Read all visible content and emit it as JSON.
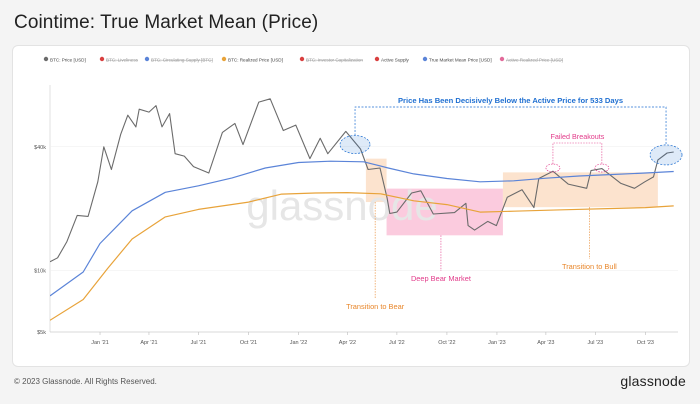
{
  "title": "Cointime: True Market Mean (Price)",
  "footer": {
    "copyright": "© 2023 Glassnode. All Rights Reserved.",
    "logo": "glassnode"
  },
  "watermark": "glassnode",
  "colors": {
    "price": "#6b6b6b",
    "true_market_mean": "#5b84d8",
    "realized": "#e8a33a",
    "annot_blue": "#1f6fd1",
    "annot_pink": "#e23b8a",
    "annot_orange": "#e8862a",
    "pink_fill": "#f9b9d3",
    "orange_fill": "#fbdcc2"
  },
  "chart_data": {
    "type": "line",
    "x_labels": [
      "Jan '21",
      "Apr '21",
      "Jul '21",
      "Oct '21",
      "Jan '22",
      "Apr '22",
      "Jul '22",
      "Oct '22",
      "Jan '23",
      "Apr '23",
      "Jul '23",
      "Oct '23"
    ],
    "y_scale": "log",
    "y_ticks": [
      {
        "value": 5000,
        "label": "$5k"
      },
      {
        "value": 10000,
        "label": "$10k"
      },
      {
        "value": 40000,
        "label": "$40k"
      }
    ],
    "ylim": [
      5000,
      80000
    ],
    "legend": [
      {
        "name": "BTC: Price [USD]",
        "color": "#6b6b6b",
        "hidden": false
      },
      {
        "name": "BTC: Liveliness",
        "color": "#d94040",
        "hidden": true
      },
      {
        "name": "BTC: Circulating Supply [BTC]",
        "color": "#5b84d8",
        "hidden": true
      },
      {
        "name": "BTC: Realized Price [USD]",
        "color": "#e8a33a",
        "hidden": false
      },
      {
        "name": "BTC: Investor Capitalization",
        "color": "#d94040",
        "hidden": true
      },
      {
        "name": "Active Supply",
        "color": "#d94040",
        "hidden": false
      },
      {
        "name": "True Market Mean Price [USD]",
        "color": "#5b84d8",
        "hidden": false
      },
      {
        "name": "Active Realized Price [USD]",
        "color": "#e26a9a",
        "hidden": true
      }
    ],
    "series": [
      {
        "name": "BTC: Price [USD]",
        "points": [
          [
            "2020-10-01",
            11000
          ],
          [
            "2020-10-15",
            11500
          ],
          [
            "2020-11-01",
            13800
          ],
          [
            "2020-11-20",
            18500
          ],
          [
            "2020-12-10",
            18300
          ],
          [
            "2020-12-28",
            27000
          ],
          [
            "2021-01-08",
            40000
          ],
          [
            "2021-01-22",
            31000
          ],
          [
            "2021-02-08",
            46000
          ],
          [
            "2021-02-21",
            57000
          ],
          [
            "2021-03-08",
            50000
          ],
          [
            "2021-03-14",
            61000
          ],
          [
            "2021-04-01",
            59000
          ],
          [
            "2021-04-14",
            63500
          ],
          [
            "2021-04-25",
            50000
          ],
          [
            "2021-05-09",
            58000
          ],
          [
            "2021-05-19",
            37000
          ],
          [
            "2021-06-05",
            36000
          ],
          [
            "2021-06-22",
            32000
          ],
          [
            "2021-07-20",
            29800
          ],
          [
            "2021-08-14",
            47000
          ],
          [
            "2021-09-06",
            52000
          ],
          [
            "2021-09-21",
            41000
          ],
          [
            "2021-10-20",
            66000
          ],
          [
            "2021-11-10",
            68500
          ],
          [
            "2021-12-04",
            48000
          ],
          [
            "2021-12-27",
            51000
          ],
          [
            "2022-01-22",
            35000
          ],
          [
            "2022-02-10",
            44000
          ],
          [
            "2022-02-24",
            37000
          ],
          [
            "2022-03-29",
            47500
          ],
          [
            "2022-04-25",
            39000
          ],
          [
            "2022-05-09",
            31000
          ],
          [
            "2022-05-31",
            31500
          ],
          [
            "2022-06-13",
            22500
          ],
          [
            "2022-06-18",
            18900
          ],
          [
            "2022-07-01",
            19200
          ],
          [
            "2022-07-28",
            23800
          ],
          [
            "2022-08-14",
            24400
          ],
          [
            "2022-09-06",
            18800
          ],
          [
            "2022-10-15",
            19100
          ],
          [
            "2022-11-05",
            21200
          ],
          [
            "2022-11-09",
            16500
          ],
          [
            "2022-11-21",
            15700
          ],
          [
            "2022-12-15",
            17300
          ],
          [
            "2022-12-31",
            16500
          ],
          [
            "2023-01-20",
            22700
          ],
          [
            "2023-02-16",
            24700
          ],
          [
            "2023-03-10",
            20200
          ],
          [
            "2023-03-19",
            28000
          ],
          [
            "2023-04-14",
            30400
          ],
          [
            "2023-05-12",
            26300
          ],
          [
            "2023-06-15",
            25100
          ],
          [
            "2023-06-23",
            30600
          ],
          [
            "2023-07-13",
            31300
          ],
          [
            "2023-08-17",
            26500
          ],
          [
            "2023-09-11",
            25100
          ],
          [
            "2023-09-30",
            27000
          ],
          [
            "2023-10-16",
            28500
          ],
          [
            "2023-10-24",
            34500
          ],
          [
            "2023-11-10",
            37300
          ],
          [
            "2023-11-22",
            37700
          ]
        ]
      },
      {
        "name": "True Market Mean Price [USD]",
        "points": [
          [
            "2020-10-01",
            7500
          ],
          [
            "2020-12-01",
            9800
          ],
          [
            "2021-01-01",
            13500
          ],
          [
            "2021-03-01",
            19500
          ],
          [
            "2021-05-01",
            24000
          ],
          [
            "2021-07-01",
            25800
          ],
          [
            "2021-09-01",
            28200
          ],
          [
            "2021-11-01",
            31500
          ],
          [
            "2022-01-01",
            33500
          ],
          [
            "2022-03-01",
            34000
          ],
          [
            "2022-05-01",
            33800
          ],
          [
            "2022-06-15",
            31500
          ],
          [
            "2022-08-01",
            29500
          ],
          [
            "2022-10-01",
            28000
          ],
          [
            "2022-12-01",
            27000
          ],
          [
            "2023-02-01",
            27300
          ],
          [
            "2023-04-01",
            28100
          ],
          [
            "2023-06-01",
            28800
          ],
          [
            "2023-08-01",
            29300
          ],
          [
            "2023-10-01",
            29800
          ],
          [
            "2023-11-22",
            30300
          ]
        ]
      },
      {
        "name": "BTC: Realized Price [USD]",
        "points": [
          [
            "2020-10-01",
            5700
          ],
          [
            "2020-12-01",
            7200
          ],
          [
            "2021-01-15",
            10200
          ],
          [
            "2021-03-01",
            14200
          ],
          [
            "2021-05-01",
            18200
          ],
          [
            "2021-07-01",
            19800
          ],
          [
            "2021-10-01",
            21500
          ],
          [
            "2021-12-01",
            23500
          ],
          [
            "2022-02-01",
            23800
          ],
          [
            "2022-04-01",
            23900
          ],
          [
            "2022-06-01",
            23600
          ],
          [
            "2022-08-01",
            21800
          ],
          [
            "2022-10-01",
            20900
          ],
          [
            "2022-12-01",
            19200
          ],
          [
            "2023-02-01",
            19400
          ],
          [
            "2023-05-01",
            19700
          ],
          [
            "2023-08-01",
            20000
          ],
          [
            "2023-10-01",
            20200
          ],
          [
            "2023-11-22",
            20600
          ]
        ]
      }
    ],
    "annotations": [
      {
        "text": "Price Has Been Decisively Below the Active Price for 533 Days",
        "color": "#1f6fd1"
      },
      {
        "text": "Failed Breakouts",
        "color": "#e23b8a"
      },
      {
        "text": "Deep Bear Market",
        "color": "#e23b8a"
      },
      {
        "text": "Transition to Bear",
        "color": "#e8862a"
      },
      {
        "text": "Transition to Bull",
        "color": "#e8862a"
      }
    ]
  }
}
